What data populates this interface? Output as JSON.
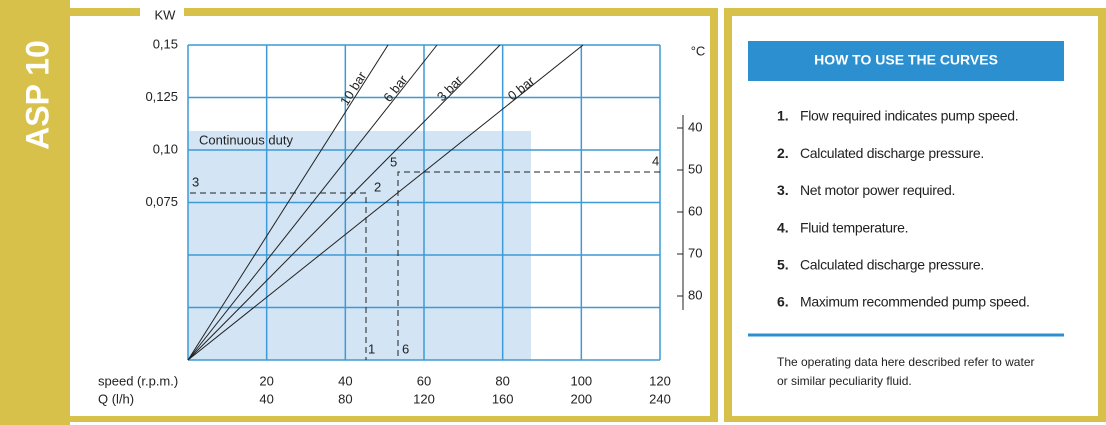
{
  "side_label": "ASP 10",
  "chart": {
    "y_unit": "KW",
    "y_labels": [
      "0,15",
      "0,125",
      "0,10",
      "0,075"
    ],
    "x_row_labels": [
      "speed (r.p.m.)",
      "Q (l/h)"
    ],
    "speed": [
      "20",
      "40",
      "60",
      "80",
      "100",
      "120"
    ],
    "flow": [
      "40",
      "80",
      "120",
      "160",
      "200",
      "240"
    ],
    "temp_unit": "°C",
    "temp": [
      "40",
      "50",
      "60",
      "70",
      "80"
    ],
    "lines": [
      "10 bar",
      "6 bar",
      "3 bar",
      "0 bar"
    ],
    "region": "Continuous duty",
    "points": [
      "1",
      "2",
      "3",
      "4",
      "5",
      "6"
    ]
  },
  "panel": {
    "title": "HOW TO USE THE CURVES",
    "steps": [
      {
        "num": "1.",
        "text": "Flow required indicates pump speed."
      },
      {
        "num": "2.",
        "text": "Calculated discharge pressure."
      },
      {
        "num": "3.",
        "text": "Net motor power required."
      },
      {
        "num": "4.",
        "text": "Fluid temperature."
      },
      {
        "num": "5.",
        "text": "Calculated discharge pressure."
      },
      {
        "num": "6.",
        "text": "Maximum recommended pump speed."
      }
    ],
    "note": [
      "The operating data here described refer to water",
      "or similar peculiarity fluid."
    ]
  }
}
